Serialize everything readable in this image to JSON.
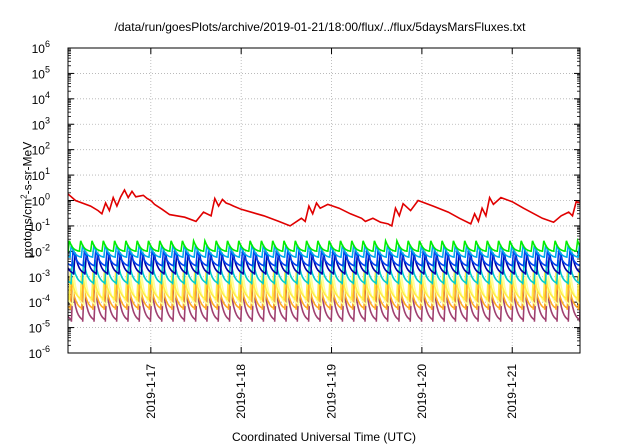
{
  "chart_data": {
    "type": "line",
    "title": "/data/run/goesPlots/archive/2019-01-21/18:00/flux/../flux/5daysMarsFluxes.txt",
    "xlabel": "Coordinated Universal Time (UTC)",
    "ylabel": {
      "prefix": "protons/cm",
      "sup": "2",
      "suffix": "-s-sr-MeV"
    },
    "yscale": "log",
    "ylim": [
      1e-06,
      1000000.0
    ],
    "y_ticks": [
      {
        "value": 1e-06,
        "base": "10",
        "exp": "-6"
      },
      {
        "value": 1e-05,
        "base": "10",
        "exp": "-5"
      },
      {
        "value": 0.0001,
        "base": "10",
        "exp": "-4"
      },
      {
        "value": 0.001,
        "base": "10",
        "exp": "-3"
      },
      {
        "value": 0.01,
        "base": "10",
        "exp": "-2"
      },
      {
        "value": 0.1,
        "base": "10",
        "exp": "-1"
      },
      {
        "value": 1,
        "base": "10",
        "exp": "0"
      },
      {
        "value": 10,
        "base": "10",
        "exp": "1"
      },
      {
        "value": 100,
        "base": "10",
        "exp": "2"
      },
      {
        "value": 1000.0,
        "base": "10",
        "exp": "3"
      },
      {
        "value": 10000.0,
        "base": "10",
        "exp": "4"
      },
      {
        "value": 100000.0,
        "base": "10",
        "exp": "5"
      },
      {
        "value": 1000000.0,
        "base": "10",
        "exp": "6"
      }
    ],
    "xlim": [
      "2019-01-16 02:00",
      "2019-01-21 18:00"
    ],
    "x_ticks": [
      {
        "value": "2019-01-17 00:00",
        "label": "2019-1-17"
      },
      {
        "value": "2019-01-18 00:00",
        "label": "2019-1-18"
      },
      {
        "value": "2019-01-19 00:00",
        "label": "2019-1-19"
      },
      {
        "value": "2019-01-20 00:00",
        "label": "2019-1-20"
      },
      {
        "value": "2019-01-21 00:00",
        "label": "2019-1-21"
      }
    ],
    "grid": true,
    "series": [
      {
        "color": "#e00000",
        "x": [
          "2019-01-16 02:00",
          "2019-01-16 04:00",
          "2019-01-16 08:00",
          "2019-01-16 10:00",
          "2019-01-16 11:00",
          "2019-01-16 12:00",
          "2019-01-16 13:00",
          "2019-01-16 14:00",
          "2019-01-16 15:00",
          "2019-01-16 16:00",
          "2019-01-16 17:00",
          "2019-01-16 18:00",
          "2019-01-16 19:00",
          "2019-01-16 20:00",
          "2019-01-16 22:00",
          "2019-01-16 23:00",
          "2019-01-17 00:00",
          "2019-01-17 01:00",
          "2019-01-17 03:00",
          "2019-01-17 05:00",
          "2019-01-17 09:00",
          "2019-01-17 12:00",
          "2019-01-17 14:00",
          "2019-01-17 16:00",
          "2019-01-17 17:00",
          "2019-01-17 18:00",
          "2019-01-17 19:00",
          "2019-01-17 20:00",
          "2019-01-17 21:00",
          "2019-01-17 22:00",
          "2019-01-18 00:00",
          "2019-01-18 06:00",
          "2019-01-18 10:00",
          "2019-01-18 13:00",
          "2019-01-18 16:00",
          "2019-01-18 17:00",
          "2019-01-18 18:00",
          "2019-01-18 19:00",
          "2019-01-18 20:00",
          "2019-01-18 21:00",
          "2019-01-18 23:00",
          "2019-01-19 02:00",
          "2019-01-19 05:00",
          "2019-01-19 08:00",
          "2019-01-19 09:00",
          "2019-01-19 11:00",
          "2019-01-19 13:00",
          "2019-01-19 15:00",
          "2019-01-19 16:00",
          "2019-01-19 17:00",
          "2019-01-19 18:00",
          "2019-01-19 19:00",
          "2019-01-19 21:00",
          "2019-01-19 23:00",
          "2019-01-20 03:00",
          "2019-01-20 07:00",
          "2019-01-20 10:00",
          "2019-01-20 13:00",
          "2019-01-20 14:00",
          "2019-01-20 15:00",
          "2019-01-20 16:00",
          "2019-01-20 17:00",
          "2019-01-20 18:00",
          "2019-01-20 19:00",
          "2019-01-20 21:00",
          "2019-01-21 00:00",
          "2019-01-21 03:00",
          "2019-01-21 08:00",
          "2019-01-21 11:00",
          "2019-01-21 13:00",
          "2019-01-21 15:00",
          "2019-01-21 16:00",
          "2019-01-21 17:00",
          "2019-01-21 18:00"
        ],
        "y": [
          1.8,
          1.0,
          0.6,
          0.4,
          0.3,
          0.8,
          0.4,
          1.3,
          0.6,
          1.4,
          2.6,
          1.3,
          2.3,
          1.4,
          1.6,
          1.2,
          1.0,
          0.7,
          0.45,
          0.28,
          0.22,
          0.15,
          0.35,
          0.25,
          1.2,
          0.6,
          1.1,
          0.8,
          0.7,
          0.6,
          0.45,
          0.25,
          0.15,
          0.1,
          0.2,
          0.15,
          0.6,
          0.3,
          0.8,
          0.5,
          0.7,
          0.5,
          0.3,
          0.2,
          0.15,
          0.2,
          0.14,
          0.12,
          0.1,
          0.5,
          0.25,
          0.75,
          0.4,
          1.0,
          0.6,
          0.35,
          0.2,
          0.12,
          0.3,
          0.15,
          0.5,
          0.25,
          1.3,
          0.7,
          1.3,
          0.9,
          0.5,
          0.2,
          0.14,
          0.25,
          0.35,
          0.25,
          0.9,
          0.8
        ]
      },
      {
        "color": "#00ee00",
        "low": 0.0095,
        "high": 0.026,
        "phase": 0.0
      },
      {
        "color": "#00aaee",
        "low": 0.0055,
        "high": 0.018,
        "phase": 0.5
      },
      {
        "color": "#0044ee",
        "low": 0.0025,
        "high": 0.012,
        "phase": 1.0
      },
      {
        "color": "#0000aa",
        "low": 0.0012,
        "high": 0.009,
        "phase": 1.5
      },
      {
        "color": "#00cccc",
        "low": 0.0005,
        "high": 0.0045,
        "phase": 0.8
      },
      {
        "color": "#ffee44",
        "low": 0.00012,
        "high": 0.0018,
        "phase": 0.3
      },
      {
        "color": "#ffff99",
        "low": 7e-05,
        "high": 0.0011,
        "phase": 1.2
      },
      {
        "color": "#ffaa22",
        "low": 5e-05,
        "high": 0.0007,
        "phase": 0.6
      },
      {
        "color": "#a04070",
        "low": 1.7e-05,
        "high": 0.00035,
        "phase": 0.9
      }
    ]
  }
}
